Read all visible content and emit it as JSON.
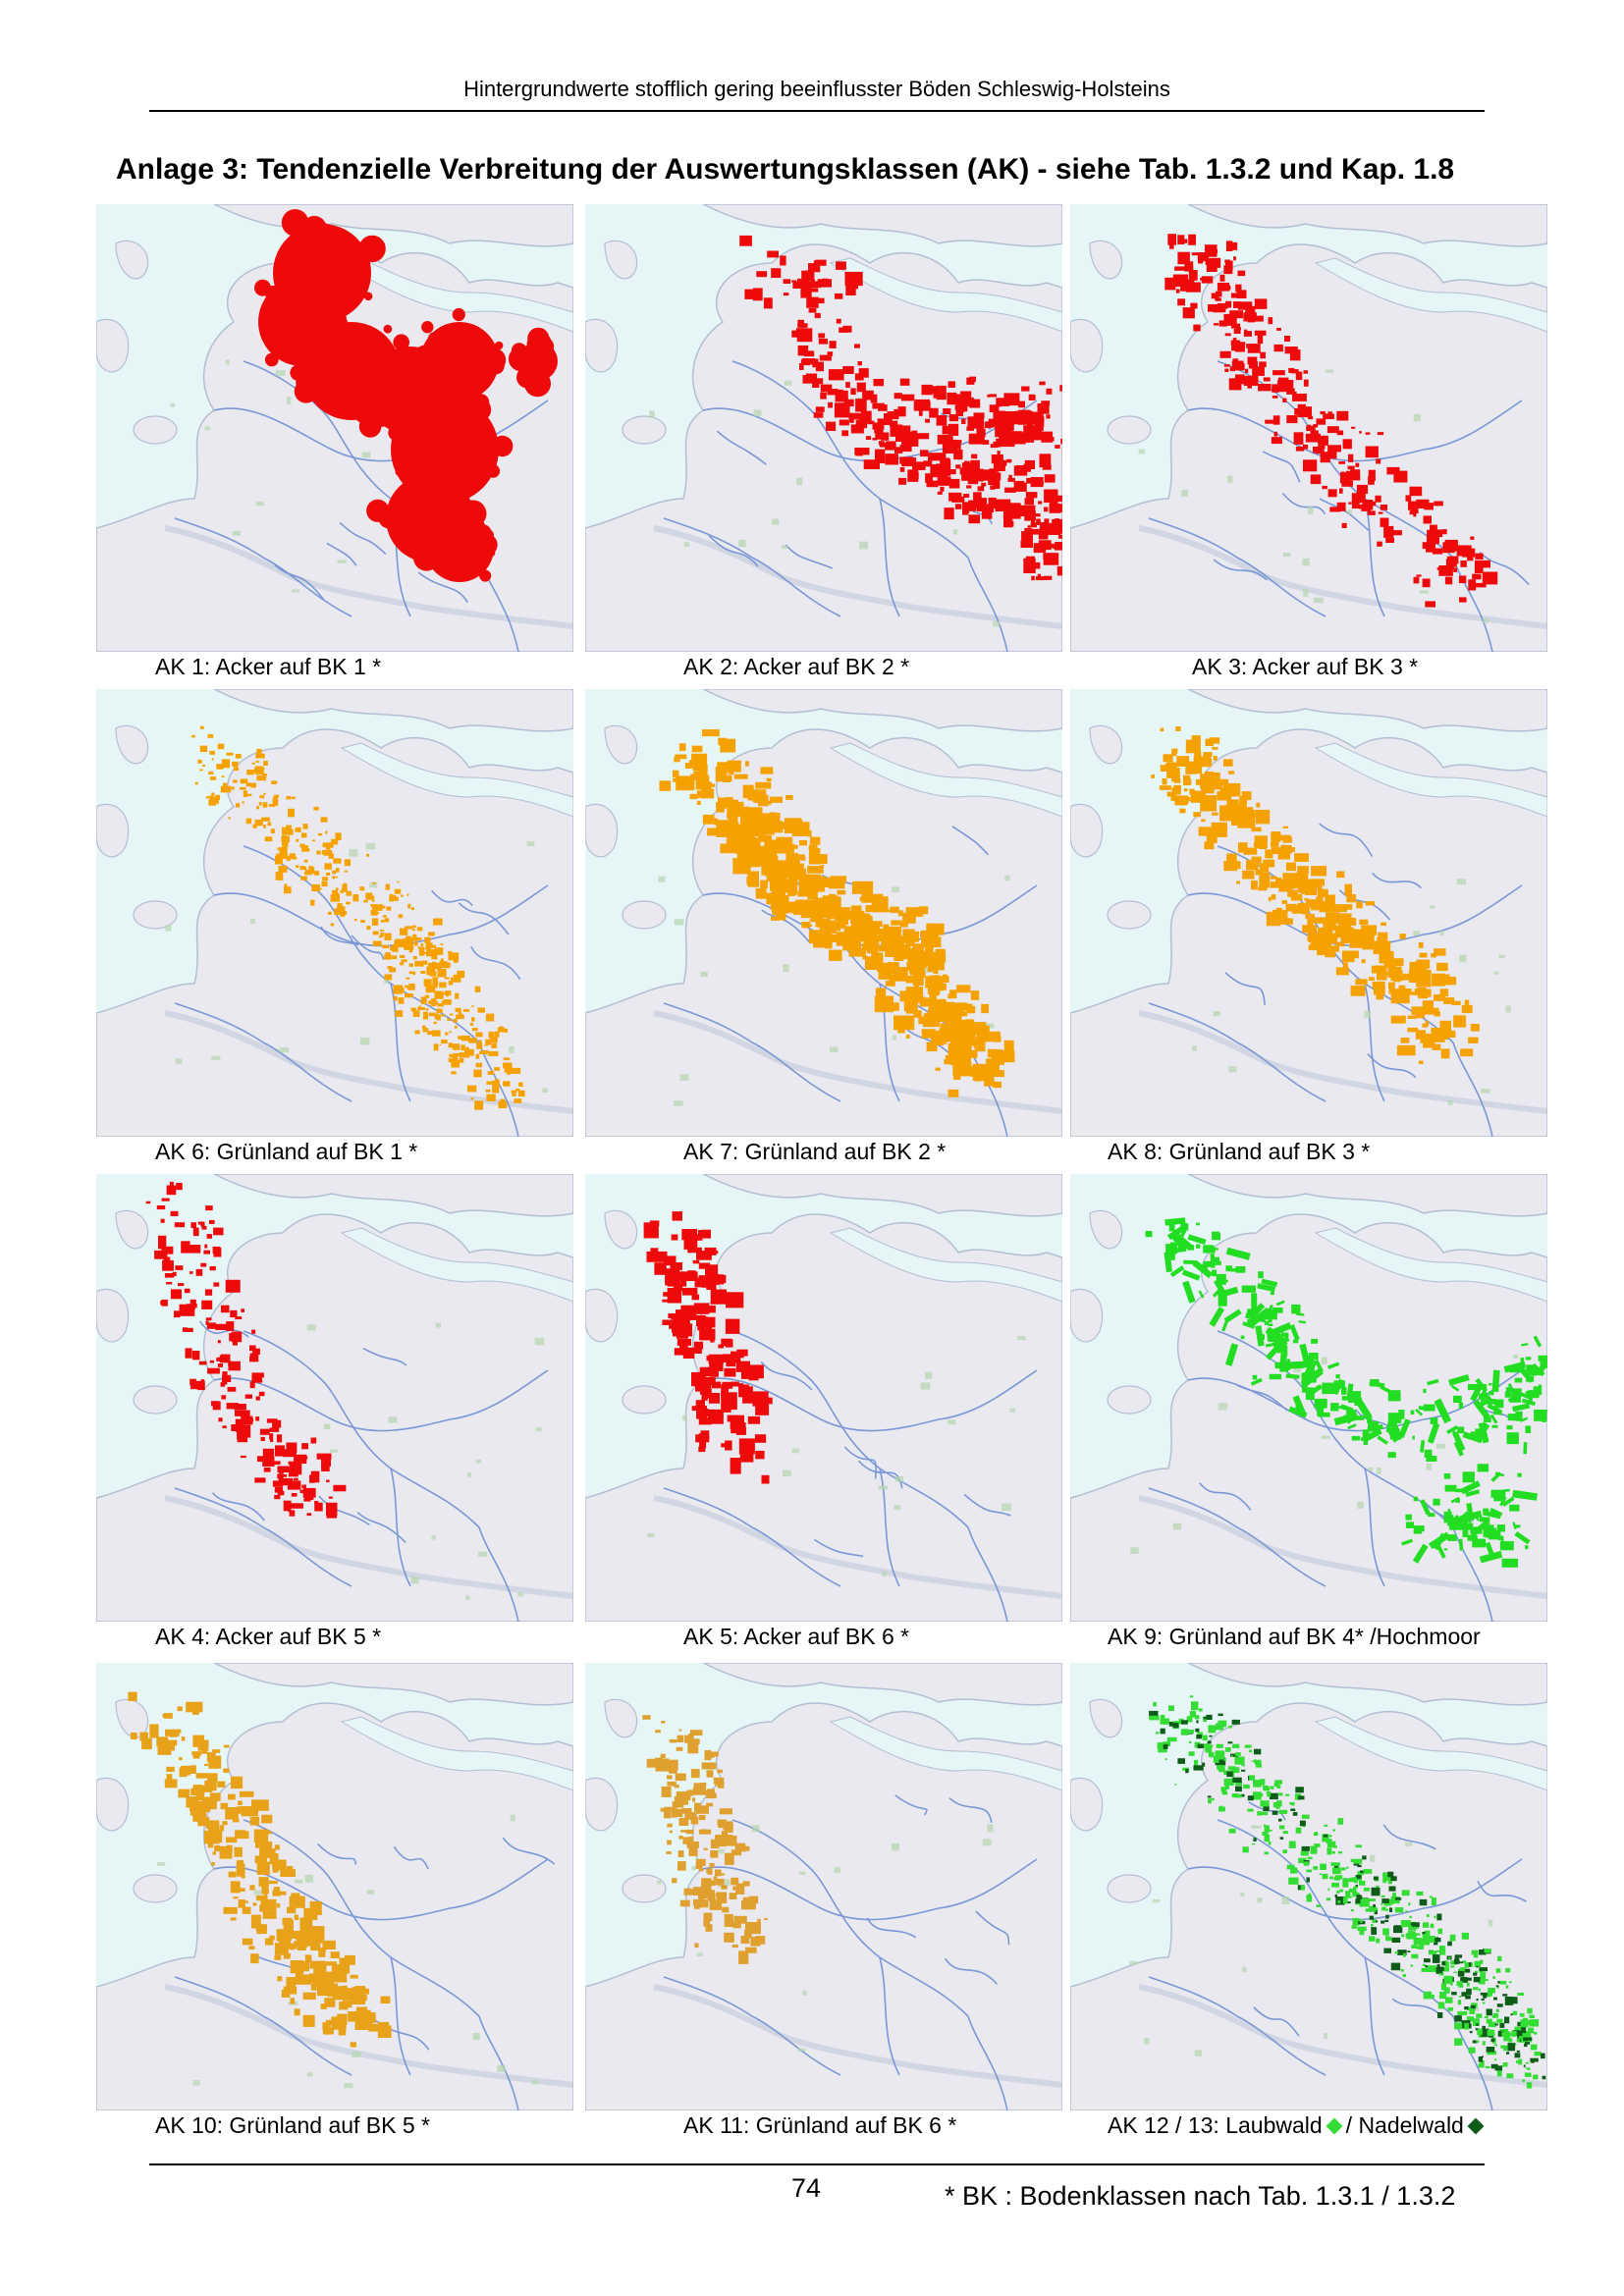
{
  "header": {
    "running_title": "Hintergrundwerte stofflich gering beeinflusster Böden Schleswig-Holsteins"
  },
  "page_title": "Anlage 3: Tendenzielle Verbreitung der Auswertungsklassen (AK) - siehe Tab. 1.3.2 und Kap. 1.8",
  "maps": [
    {
      "caption": "AK 1: Acker auf BK 1 *",
      "color": "#ee0a0a",
      "pattern": "ak1"
    },
    {
      "caption": "AK 2: Acker auf BK 2 *",
      "color": "#ee0a0a",
      "pattern": "ak2"
    },
    {
      "caption": "AK 3: Acker auf BK 3 *",
      "color": "#ee0a0a",
      "pattern": "ak3"
    },
    {
      "caption": "AK 6: Grünland auf BK 1 *",
      "color": "#f5a200",
      "pattern": "ak6"
    },
    {
      "caption": "AK 7: Grünland auf BK 2 *",
      "color": "#f5a200",
      "pattern": "ak7"
    },
    {
      "caption": "AK 8: Grünland auf BK 3 *",
      "color": "#f5a200",
      "pattern": "ak8"
    },
    {
      "caption": "AK 4: Acker auf BK 5 *",
      "color": "#ee0a0a",
      "pattern": "ak4"
    },
    {
      "caption": "AK 5: Acker auf BK 6 *",
      "color": "#ee0a0a",
      "pattern": "ak5"
    },
    {
      "caption": "AK 9: Grünland auf BK 4* /Hochmoor",
      "color": "#22dd22",
      "pattern": "ak9"
    },
    {
      "caption": "AK 10: Grünland auf BK 5 *",
      "color": "#e8a21a",
      "pattern": "ak10"
    },
    {
      "caption": "AK 11: Grünland auf BK 6 *",
      "color": "#e0a030",
      "pattern": "ak11"
    },
    {
      "caption": "AK 12 / 13: Laubwald",
      "caption_mid": "/ Nadelwald",
      "color": "#33dd33",
      "color_secondary": "#0d5c18",
      "pattern": "ak12"
    }
  ],
  "legend_icons": {
    "laubwald": "light-green-diamond-icon",
    "nadelwald": "dark-green-diamond-icon"
  },
  "map_base": {
    "water": "#e6f6f7",
    "land": "#e9e9ef",
    "coast": "#b4bed2",
    "rivers": "#6f8fd4"
  },
  "page_number": "74",
  "footnote": "* BK : Bodenklassen nach Tab. 1.3.1 / 1.3.2"
}
